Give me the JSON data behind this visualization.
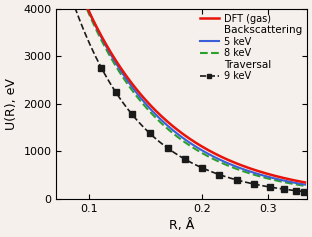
{
  "title": "",
  "xlabel": "R, Å",
  "ylabel": "U(R), eV",
  "xlim": [
    0.082,
    0.38
  ],
  "ylim": [
    0,
    4000
  ],
  "yticks": [
    0,
    1000,
    2000,
    3000,
    4000
  ],
  "xticks": [
    0.1,
    0.2,
    0.3
  ],
  "dft_color": "#e8130a",
  "bs5_color": "#3a5fd9",
  "bs8_color": "#2ca02c",
  "tr9_color": "#1a1a1a",
  "background": "#f5f0eb",
  "legend_items": [
    "DFT (gas)",
    "Backscattering",
    "5 keV",
    "8 keV",
    "Traversal",
    "9 keV"
  ],
  "dft_at_010": 3950,
  "dft_at_035": 390,
  "bs5_at_010": 3950,
  "bs5_at_035": 340,
  "bs8_at_010": 3900,
  "bs8_at_035": 310,
  "tr9_at_010": 3300,
  "tr9_at_035": 175
}
